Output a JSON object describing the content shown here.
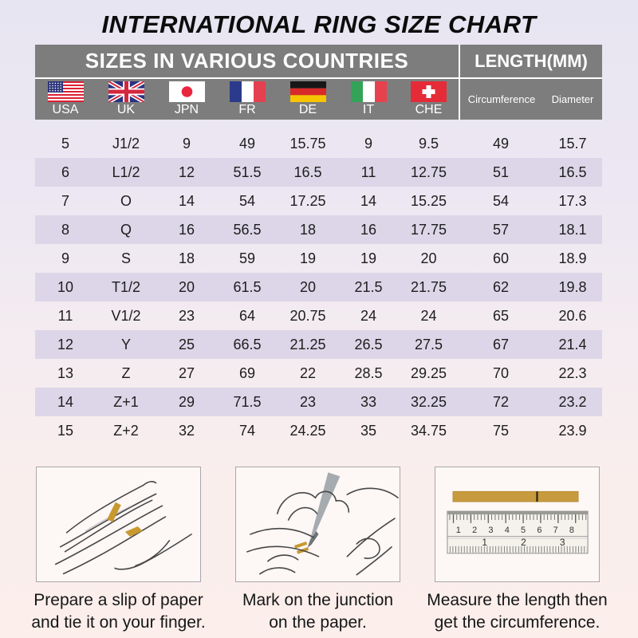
{
  "title": "INTERNATIONAL RING SIZE CHART",
  "chart_data": {
    "type": "table",
    "group_headers": {
      "countries": "SIZES IN VARIOUS COUNTRIES",
      "length": "LENGTH(MM)"
    },
    "country_columns": [
      {
        "code": "usa",
        "label": "USA",
        "icon": "usa-flag-icon"
      },
      {
        "code": "uk",
        "label": "UK",
        "icon": "uk-flag-icon"
      },
      {
        "code": "jpn",
        "label": "JPN",
        "icon": "japan-flag-icon"
      },
      {
        "code": "fr",
        "label": "FR",
        "icon": "france-flag-icon"
      },
      {
        "code": "de",
        "label": "DE",
        "icon": "germany-flag-icon"
      },
      {
        "code": "it",
        "label": "IT",
        "icon": "italy-flag-icon"
      },
      {
        "code": "che",
        "label": "CHE",
        "icon": "switzerland-flag-icon"
      }
    ],
    "length_columns": [
      "Circumference",
      "Diameter"
    ],
    "rows": [
      [
        "5",
        "J1/2",
        "9",
        "49",
        "15.75",
        "9",
        "9.5",
        "49",
        "15.7"
      ],
      [
        "6",
        "L1/2",
        "12",
        "51.5",
        "16.5",
        "11",
        "12.75",
        "51",
        "16.5"
      ],
      [
        "7",
        "O",
        "14",
        "54",
        "17.25",
        "14",
        "15.25",
        "54",
        "17.3"
      ],
      [
        "8",
        "Q",
        "16",
        "56.5",
        "18",
        "16",
        "17.75",
        "57",
        "18.1"
      ],
      [
        "9",
        "S",
        "18",
        "59",
        "19",
        "19",
        "20",
        "60",
        "18.9"
      ],
      [
        "10",
        "T1/2",
        "20",
        "61.5",
        "20",
        "21.5",
        "21.75",
        "62",
        "19.8"
      ],
      [
        "11",
        "V1/2",
        "23",
        "64",
        "20.75",
        "24",
        "24",
        "65",
        "20.6"
      ],
      [
        "12",
        "Y",
        "25",
        "66.5",
        "21.25",
        "26.5",
        "27.5",
        "67",
        "21.4"
      ],
      [
        "13",
        "Z",
        "27",
        "69",
        "22",
        "28.5",
        "29.25",
        "70",
        "22.3"
      ],
      [
        "14",
        "Z+1",
        "29",
        "71.5",
        "23",
        "33",
        "32.25",
        "72",
        "23.2"
      ],
      [
        "15",
        "Z+2",
        "32",
        "74",
        "24.25",
        "35",
        "34.75",
        "75",
        "23.9"
      ]
    ]
  },
  "instructions": {
    "steps": [
      {
        "illustration": "hand-with-paper-slip",
        "caption": [
          "Prepare a slip of paper",
          "and tie it on your finger."
        ]
      },
      {
        "illustration": "hand-marking-with-pen",
        "caption": [
          "Mark on the junction",
          "on the paper."
        ]
      },
      {
        "illustration": "ruler-measuring-strip",
        "caption": [
          "Measure the length then",
          "get the circumference."
        ],
        "ruler_numbers_top": [
          "1",
          "2",
          "3",
          "4",
          "5",
          "6",
          "7",
          "8"
        ],
        "ruler_numbers_bottom": [
          "1",
          "2",
          "3"
        ]
      }
    ]
  },
  "colors": {
    "header_band": "#7d7d7d",
    "header_text": "#ffffff",
    "row_shade": "#dcd6e8",
    "table_text": "#1d1d1d",
    "background_top": "#e8e5f2",
    "background_bottom": "#fbeeeb",
    "paper_strip_gold": "#c79a3d"
  }
}
